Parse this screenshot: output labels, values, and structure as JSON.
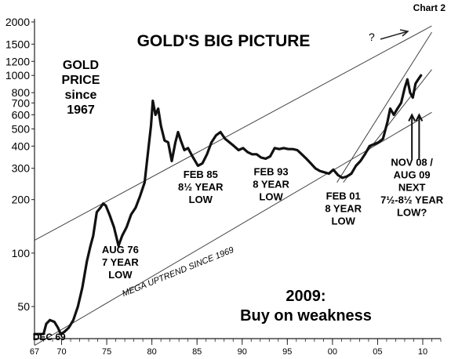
{
  "chart_data": {
    "type": "line",
    "chart_label": "Chart 2",
    "title": "GOLD'S BIG PICTURE",
    "subtitle_lines": [
      "GOLD",
      "PRICE",
      "since",
      "1967"
    ],
    "y_scale": "log",
    "ylim": [
      33,
      2000
    ],
    "xlim": [
      1967,
      2012
    ],
    "y_ticks": [
      {
        "value": 50,
        "label": "50"
      },
      {
        "value": 100,
        "label": "100"
      },
      {
        "value": 200,
        "label": "200"
      },
      {
        "value": 300,
        "label": "300"
      },
      {
        "value": 400,
        "label": "400"
      },
      {
        "value": 500,
        "label": "500"
      },
      {
        "value": 600,
        "label": "600"
      },
      {
        "value": 700,
        "label": "700"
      },
      {
        "value": 800,
        "label": "800"
      },
      {
        "value": 1000,
        "label": "1000"
      },
      {
        "value": 1200,
        "label": "1200"
      },
      {
        "value": 1500,
        "label": "1500"
      },
      {
        "value": 2000,
        "label": "2000"
      }
    ],
    "x_ticks": [
      {
        "value": 1967,
        "label": "67"
      },
      {
        "value": 1970,
        "label": "70"
      },
      {
        "value": 1975,
        "label": "75"
      },
      {
        "value": 1980,
        "label": "80"
      },
      {
        "value": 1985,
        "label": "85"
      },
      {
        "value": 1990,
        "label": "90"
      },
      {
        "value": 1995,
        "label": "95"
      },
      {
        "value": 2000,
        "label": "00"
      },
      {
        "value": 2005,
        "label": "05"
      },
      {
        "value": 2010,
        "label": "10"
      }
    ],
    "series": [
      {
        "x": [
          1967,
          1968,
          1968.3,
          1968.7,
          1969.2,
          1969.6,
          1969.9,
          1970.3,
          1970.8,
          1971.3,
          1971.8,
          1972.3,
          1972.8,
          1973.2,
          1973.5,
          1973.9,
          1974.3,
          1974.6,
          1974.9,
          1975.3,
          1975.8,
          1976.3,
          1976.7,
          1977.2,
          1977.7,
          1978.2,
          1978.7,
          1979.2,
          1979.6,
          1979.9,
          1980.1,
          1980.4,
          1980.7,
          1981.0,
          1981.4,
          1981.8,
          1982.2,
          1982.6,
          1982.9,
          1983.2,
          1983.6,
          1984.0,
          1984.5,
          1985.1,
          1985.6,
          1986.1,
          1986.6,
          1987.1,
          1987.6,
          1988.1,
          1988.6,
          1989.1,
          1989.6,
          1990.1,
          1990.6,
          1991.1,
          1991.6,
          1992.1,
          1992.6,
          1993.1,
          1993.6,
          1994.1,
          1994.6,
          1995.1,
          1995.6,
          1996.1,
          1996.6,
          1997.1,
          1997.6,
          1998.1,
          1998.6,
          1999.1,
          1999.6,
          2000.1,
          2000.6,
          2001.1,
          2001.6,
          2002.1,
          2002.6,
          2003.1,
          2003.6,
          2004.1,
          2004.6,
          2005.1,
          2005.6,
          2006.1,
          2006.4,
          2006.8,
          2007.2,
          2007.6,
          2008.0,
          2008.3,
          2008.6,
          2008.9,
          2009.2,
          2009.5,
          2009.8
        ],
        "y": [
          35,
          35,
          40,
          42,
          41,
          38,
          35,
          36,
          38,
          42,
          50,
          64,
          90,
          110,
          125,
          170,
          180,
          190,
          185,
          165,
          140,
          110,
          125,
          140,
          165,
          180,
          210,
          250,
          380,
          520,
          720,
          600,
          650,
          520,
          430,
          420,
          330,
          420,
          480,
          430,
          380,
          390,
          350,
          310,
          320,
          360,
          420,
          460,
          480,
          440,
          420,
          400,
          380,
          390,
          370,
          360,
          360,
          345,
          340,
          350,
          390,
          385,
          390,
          385,
          385,
          380,
          360,
          340,
          320,
          300,
          290,
          285,
          280,
          295,
          275,
          265,
          270,
          280,
          310,
          330,
          360,
          400,
          410,
          420,
          440,
          550,
          650,
          600,
          650,
          700,
          850,
          950,
          800,
          750,
          900,
          950,
          1000
        ]
      }
    ],
    "trend_lines": [
      {
        "x": [
          1967,
          2011
        ],
        "y": [
          118,
          1900
        ]
      },
      {
        "x": [
          1967,
          2011
        ],
        "y": [
          30.2,
          620
        ]
      },
      {
        "x": [
          2000.5,
          2011
        ],
        "y": [
          250,
          1750
        ]
      },
      {
        "x": [
          2001.2,
          2011
        ],
        "y": [
          250,
          1080
        ]
      }
    ],
    "annotations": [
      {
        "lines": [
          "AUG 76",
          "7 YEAR",
          "LOW"
        ],
        "x": 1976.5,
        "y": 100
      },
      {
        "lines": [
          "FEB 85",
          "8½ YEAR",
          "LOW"
        ],
        "x": 1985.4,
        "y": 265
      },
      {
        "lines": [
          "FEB 93",
          "8 YEAR",
          "LOW"
        ],
        "x": 1993.2,
        "y": 275
      },
      {
        "lines": [
          "FEB 01",
          "8 YEAR",
          "LOW"
        ],
        "x": 2001.2,
        "y": 200
      },
      {
        "lines": [
          "NOV 08 /",
          "AUG 09",
          "NEXT",
          "7½-8½ YEAR",
          "LOW?"
        ],
        "x": 2008.8,
        "y": 310
      },
      {
        "lines": [
          "DEC 69"
        ],
        "x": 1966.8,
        "y": 33
      },
      {
        "lines": [
          "MEGA UPTREND SINCE 1969"
        ],
        "x": 1983,
        "y": 76
      }
    ],
    "callout": {
      "lines": [
        "2009:",
        "Buy on weakness"
      ]
    },
    "question_mark": "?"
  }
}
